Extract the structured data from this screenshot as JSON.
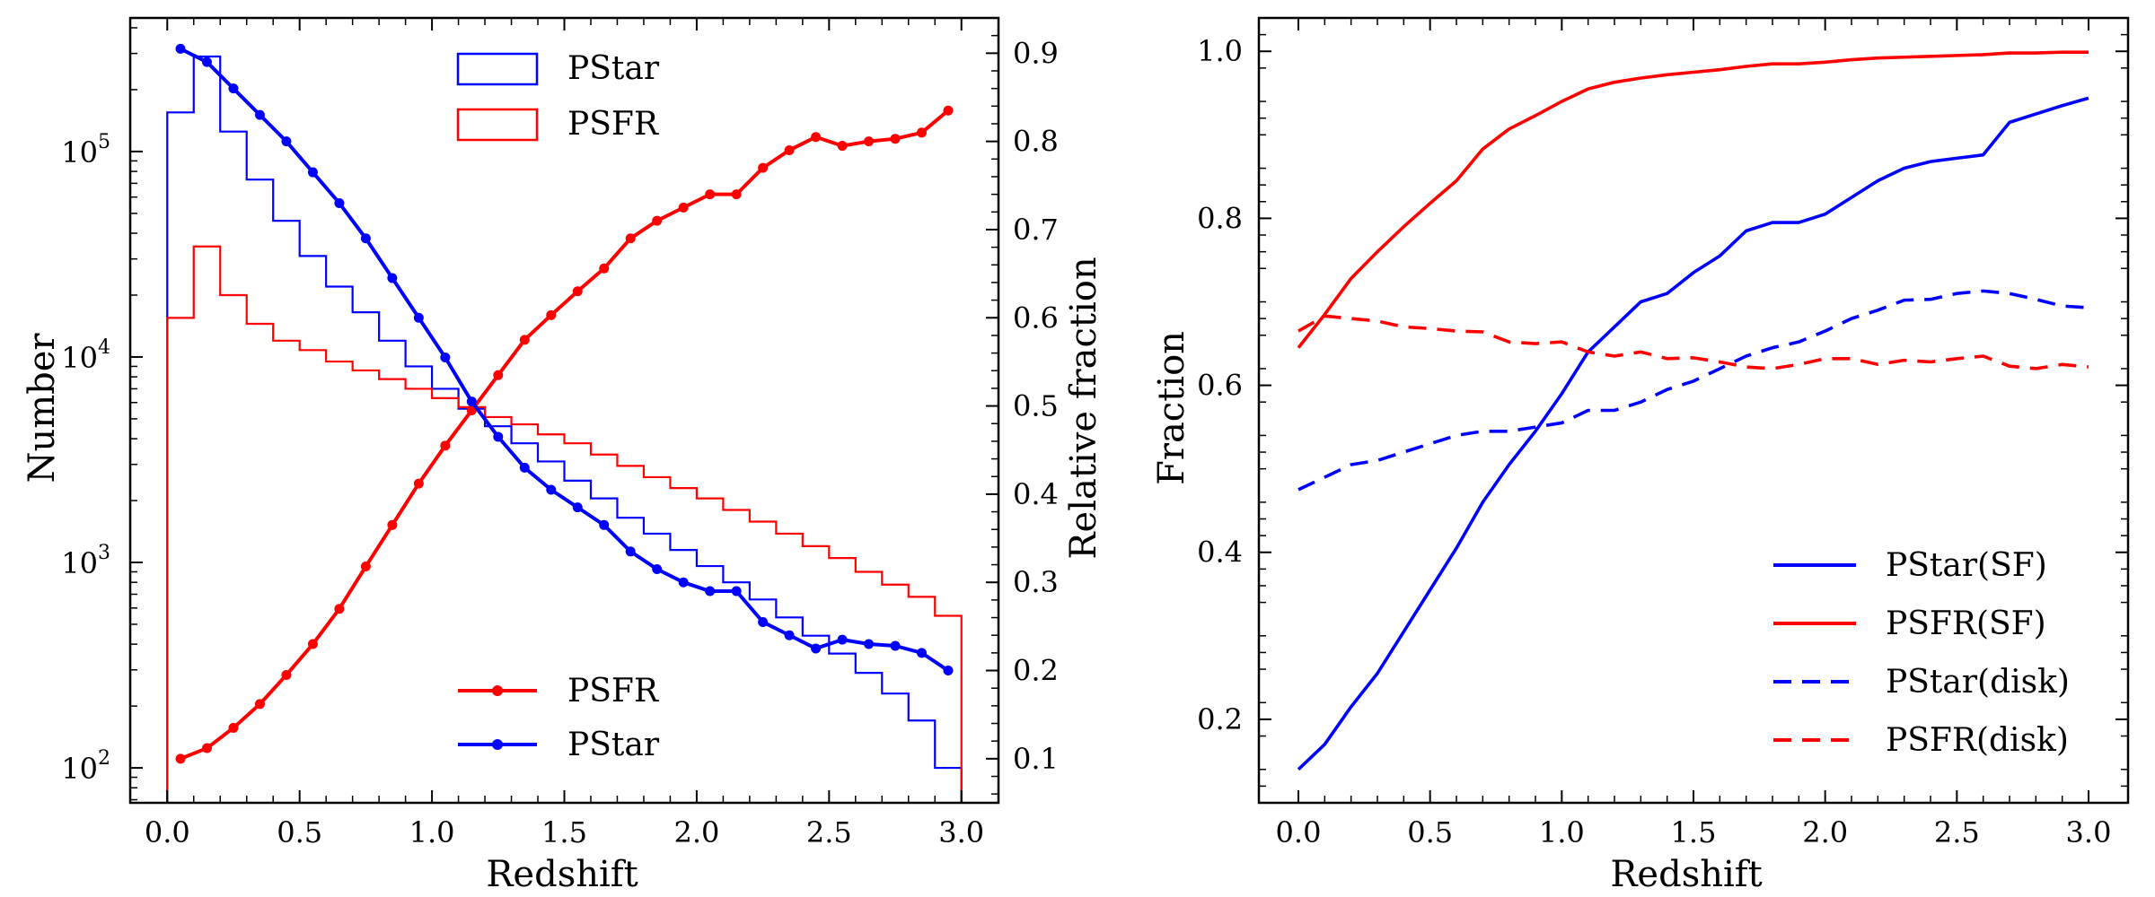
{
  "chart_data": [
    {
      "type": "histogram+line",
      "xlabel": "Redshift",
      "ylabel_left": "Number",
      "ylabel_right": "Relative fraction",
      "xlim": [
        -0.14,
        3.14
      ],
      "ylim_left_log10": [
        1.83,
        5.65
      ],
      "ylim_right": [
        0.05,
        0.94
      ],
      "x_ticks": [
        0.0,
        0.5,
        1.0,
        1.5,
        2.0,
        2.5,
        3.0
      ],
      "x_tick_labels": [
        "0.0",
        "0.5",
        "1.0",
        "1.5",
        "2.0",
        "2.5",
        "3.0"
      ],
      "y_left_ticks_log10": [
        2,
        3,
        4,
        5
      ],
      "y_left_tick_labels": [
        "10",
        "10",
        "10",
        "10"
      ],
      "y_left_tick_exponents": [
        "2",
        "3",
        "4",
        "5"
      ],
      "y_right_ticks": [
        0.1,
        0.2,
        0.3,
        0.4,
        0.5,
        0.6,
        0.7,
        0.8,
        0.9
      ],
      "y_right_tick_labels": [
        "0.1",
        "0.2",
        "0.3",
        "0.4",
        "0.5",
        "0.6",
        "0.7",
        "0.8",
        "0.9"
      ],
      "bin_edges": [
        0.0,
        0.1,
        0.2,
        0.3,
        0.4,
        0.5,
        0.6,
        0.7,
        0.8,
        0.9,
        1.0,
        1.1,
        1.2,
        1.3,
        1.4,
        1.5,
        1.6,
        1.7,
        1.8,
        1.9,
        2.0,
        2.1,
        2.2,
        2.3,
        2.4,
        2.5,
        2.6,
        2.7,
        2.8,
        2.9,
        3.0
      ],
      "histograms": [
        {
          "name": "PStar",
          "color": "#0000ff",
          "counts": [
            155000,
            290000,
            125000,
            73000,
            46000,
            31000,
            22000,
            16500,
            12000,
            9000,
            7000,
            5600,
            4600,
            3800,
            3100,
            2500,
            2050,
            1650,
            1380,
            1150,
            960,
            800,
            660,
            540,
            440,
            360,
            290,
            230,
            170,
            100
          ]
        },
        {
          "name": "PSFR",
          "color": "#ff0000",
          "counts": [
            15500,
            34500,
            20000,
            14500,
            12000,
            10800,
            9500,
            8600,
            7800,
            7000,
            6300,
            5700,
            5100,
            4700,
            4200,
            3800,
            3350,
            2950,
            2600,
            2300,
            2050,
            1800,
            1580,
            1380,
            1200,
            1050,
            900,
            780,
            680,
            550
          ]
        }
      ],
      "line_x": [
        0.05,
        0.15,
        0.25,
        0.35,
        0.45,
        0.55,
        0.65,
        0.75,
        0.85,
        0.95,
        1.05,
        1.15,
        1.25,
        1.35,
        1.45,
        1.55,
        1.65,
        1.75,
        1.85,
        1.95,
        2.05,
        2.15,
        2.25,
        2.35,
        2.45,
        2.55,
        2.65,
        2.75,
        2.85,
        2.95
      ],
      "lines": [
        {
          "name": "PSFR",
          "color": "#ff0000",
          "values": [
            0.1,
            0.112,
            0.135,
            0.162,
            0.195,
            0.23,
            0.27,
            0.318,
            0.365,
            0.412,
            0.455,
            0.495,
            0.535,
            0.575,
            0.603,
            0.63,
            0.656,
            0.69,
            0.71,
            0.725,
            0.74,
            0.74,
            0.77,
            0.79,
            0.805,
            0.795,
            0.8,
            0.803,
            0.81,
            0.835
          ]
        },
        {
          "name": "PStar",
          "color": "#0000ff",
          "values": [
            0.905,
            0.89,
            0.86,
            0.83,
            0.8,
            0.765,
            0.73,
            0.69,
            0.645,
            0.6,
            0.555,
            0.505,
            0.465,
            0.43,
            0.405,
            0.385,
            0.365,
            0.335,
            0.315,
            0.3,
            0.29,
            0.29,
            0.255,
            0.24,
            0.225,
            0.235,
            0.23,
            0.228,
            0.22,
            0.2
          ]
        }
      ],
      "legend_upper": [
        "PStar",
        "PSFR"
      ],
      "legend_lower": [
        "PSFR",
        "PStar"
      ]
    },
    {
      "type": "line",
      "xlabel": "Redshift",
      "ylabel": "Fraction",
      "xlim": [
        -0.15,
        3.15
      ],
      "ylim": [
        0.1,
        1.04
      ],
      "x_ticks": [
        0.0,
        0.5,
        1.0,
        1.5,
        2.0,
        2.5,
        3.0
      ],
      "x_tick_labels": [
        "0.0",
        "0.5",
        "1.0",
        "1.5",
        "2.0",
        "2.5",
        "3.0"
      ],
      "y_ticks": [
        0.2,
        0.4,
        0.6,
        0.8,
        1.0
      ],
      "y_tick_labels": [
        "0.2",
        "0.4",
        "0.6",
        "0.8",
        "1.0"
      ],
      "x": [
        0.0,
        0.1,
        0.2,
        0.3,
        0.4,
        0.5,
        0.6,
        0.7,
        0.8,
        0.9,
        1.0,
        1.1,
        1.2,
        1.3,
        1.4,
        1.5,
        1.6,
        1.7,
        1.8,
        1.9,
        2.0,
        2.1,
        2.2,
        2.3,
        2.4,
        2.5,
        2.6,
        2.7,
        2.8,
        2.9,
        3.0
      ],
      "series": [
        {
          "name": "PStar(SF)",
          "color": "#0000ff",
          "dash": "solid",
          "values": [
            0.14,
            0.17,
            0.215,
            0.255,
            0.305,
            0.355,
            0.405,
            0.46,
            0.505,
            0.545,
            0.59,
            0.64,
            0.67,
            0.7,
            0.71,
            0.735,
            0.755,
            0.785,
            0.795,
            0.795,
            0.805,
            0.825,
            0.845,
            0.86,
            0.868,
            0.872,
            0.876,
            0.915,
            0.925,
            0.935,
            0.944
          ]
        },
        {
          "name": "PSFR(SF)",
          "color": "#ff0000",
          "dash": "solid",
          "values": [
            0.645,
            0.685,
            0.728,
            0.76,
            0.79,
            0.818,
            0.845,
            0.883,
            0.907,
            0.923,
            0.94,
            0.955,
            0.963,
            0.968,
            0.972,
            0.975,
            0.978,
            0.982,
            0.985,
            0.985,
            0.987,
            0.99,
            0.992,
            0.993,
            0.994,
            0.995,
            0.996,
            0.998,
            0.998,
            0.999,
            0.999
          ]
        },
        {
          "name": "PStar(disk)",
          "color": "#0000ff",
          "dash": "dashed",
          "values": [
            0.475,
            0.49,
            0.505,
            0.51,
            0.52,
            0.53,
            0.54,
            0.545,
            0.545,
            0.55,
            0.555,
            0.57,
            0.57,
            0.58,
            0.595,
            0.605,
            0.62,
            0.635,
            0.645,
            0.652,
            0.665,
            0.68,
            0.69,
            0.702,
            0.703,
            0.71,
            0.713,
            0.71,
            0.703,
            0.695,
            0.693
          ]
        },
        {
          "name": "PSFR(disk)",
          "color": "#ff0000",
          "dash": "dashed",
          "values": [
            0.665,
            0.683,
            0.68,
            0.677,
            0.67,
            0.668,
            0.665,
            0.664,
            0.652,
            0.65,
            0.652,
            0.64,
            0.635,
            0.64,
            0.632,
            0.633,
            0.628,
            0.622,
            0.62,
            0.625,
            0.632,
            0.632,
            0.625,
            0.63,
            0.628,
            0.632,
            0.635,
            0.623,
            0.62,
            0.625,
            0.622
          ]
        }
      ],
      "legend": [
        "PStar(SF)",
        "PSFR(SF)",
        "PStar(disk)",
        "PSFR(disk)"
      ],
      "legend_position": "lower-right"
    }
  ]
}
